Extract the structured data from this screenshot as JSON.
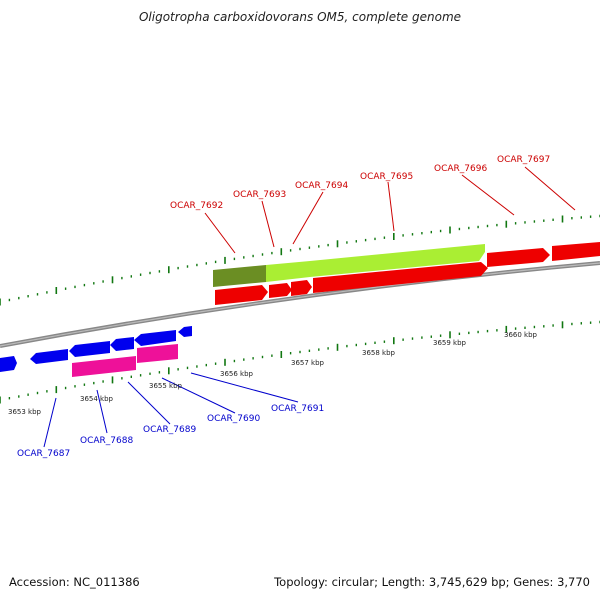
{
  "title": "Oligotropha carboxidovorans OM5, complete genome",
  "footer": {
    "accession": "Accession: NC_011386",
    "topology": "Topology: circular; Length: 3,745,629 bp; Genes: 3,770"
  },
  "colors": {
    "forward_cds": "#ee0000",
    "reverse_cds": "#0000ee",
    "rrna_green": "#aaee33",
    "dark_green": "#6b8e23",
    "pink": "#ee1199",
    "backbone": "#888888",
    "ticks": "#117711",
    "fwd_label": "#cc0000",
    "rev_label": "#0000cc"
  },
  "scale_labels": [
    "3653 kbp",
    "3654 kbp",
    "3655 kbp",
    "3656 kbp",
    "3657 kbp",
    "3658 kbp",
    "3659 kbp",
    "3660 kbp"
  ],
  "forward_genes": [
    "OCAR_7692",
    "OCAR_7693",
    "OCAR_7694",
    "OCAR_7695",
    "OCAR_7696",
    "OCAR_7697"
  ],
  "reverse_genes": [
    "OCAR_7687",
    "OCAR_7688",
    "OCAR_7689",
    "OCAR_7690",
    "OCAR_7691"
  ]
}
